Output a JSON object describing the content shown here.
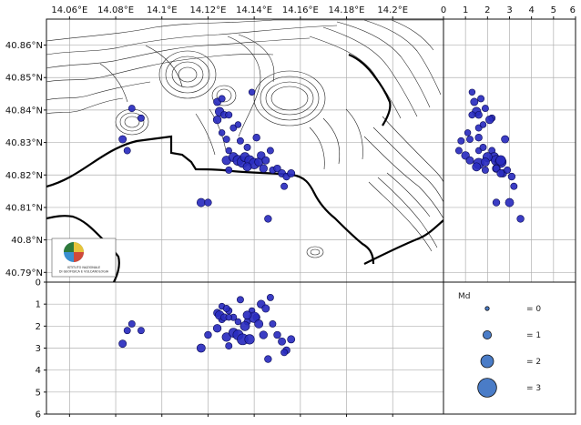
{
  "chart_data": [
    {
      "type": "scatter",
      "panel": "map",
      "x_ticks": [
        "14.06°E",
        "14.08°E",
        "14.1°E",
        "14.12°E",
        "14.14°E",
        "14.16°E",
        "14.18°E",
        "14.2°E"
      ],
      "y_ticks": [
        "40.79°N",
        "40.8°N",
        "40.81°N",
        "40.82°N",
        "40.83°N",
        "40.84°N",
        "40.85°N",
        "40.86°N"
      ],
      "xlim": [
        14.05,
        14.222
      ],
      "ylim": [
        40.787,
        40.868
      ],
      "grid": true,
      "logo_text": [
        "ISTITUTO NAZIONALE",
        "DI GEOFISICA E VULCANOLOGIA"
      ],
      "points": [
        {
          "lon": 14.087,
          "lat": 40.8405,
          "md": 0.6
        },
        {
          "lon": 14.091,
          "lat": 40.8375,
          "md": 0.6
        },
        {
          "lon": 14.083,
          "lat": 40.831,
          "md": 0.8
        },
        {
          "lon": 14.085,
          "lat": 40.8275,
          "md": 0.6
        },
        {
          "lon": 14.117,
          "lat": 40.8115,
          "md": 1.0
        },
        {
          "lon": 14.12,
          "lat": 40.8115,
          "md": 0.7
        },
        {
          "lon": 14.124,
          "lat": 40.8425,
          "md": 0.8
        },
        {
          "lon": 14.126,
          "lat": 40.8435,
          "md": 0.6
        },
        {
          "lon": 14.125,
          "lat": 40.8395,
          "md": 1.1
        },
        {
          "lon": 14.127,
          "lat": 40.8385,
          "md": 0.7
        },
        {
          "lon": 14.124,
          "lat": 40.837,
          "md": 0.9
        },
        {
          "lon": 14.129,
          "lat": 40.8385,
          "md": 0.6
        },
        {
          "lon": 14.131,
          "lat": 40.8345,
          "md": 0.6
        },
        {
          "lon": 14.133,
          "lat": 40.8355,
          "md": 0.5
        },
        {
          "lon": 14.126,
          "lat": 40.833,
          "md": 0.5
        },
        {
          "lon": 14.128,
          "lat": 40.831,
          "md": 0.6
        },
        {
          "lon": 14.134,
          "lat": 40.8305,
          "md": 0.6
        },
        {
          "lon": 14.129,
          "lat": 40.8275,
          "md": 0.5
        },
        {
          "lon": 14.137,
          "lat": 40.8285,
          "md": 0.6
        },
        {
          "lon": 14.139,
          "lat": 40.8455,
          "md": 0.5
        },
        {
          "lon": 14.141,
          "lat": 40.8315,
          "md": 0.7
        },
        {
          "lon": 14.128,
          "lat": 40.8245,
          "md": 1.1
        },
        {
          "lon": 14.131,
          "lat": 40.8255,
          "md": 1.2
        },
        {
          "lon": 14.133,
          "lat": 40.8245,
          "md": 1.4
        },
        {
          "lon": 14.135,
          "lat": 40.824,
          "md": 1.6
        },
        {
          "lon": 14.136,
          "lat": 40.8255,
          "md": 1.2
        },
        {
          "lon": 14.138,
          "lat": 40.8245,
          "md": 1.3
        },
        {
          "lon": 14.14,
          "lat": 40.8235,
          "md": 1.5
        },
        {
          "lon": 14.137,
          "lat": 40.8225,
          "md": 1.0
        },
        {
          "lon": 14.142,
          "lat": 40.824,
          "md": 1.0
        },
        {
          "lon": 14.143,
          "lat": 40.826,
          "md": 0.9
        },
        {
          "lon": 14.145,
          "lat": 40.8245,
          "md": 0.8
        },
        {
          "lon": 14.144,
          "lat": 40.822,
          "md": 0.9
        },
        {
          "lon": 14.147,
          "lat": 40.8275,
          "md": 0.6
        },
        {
          "lon": 14.148,
          "lat": 40.8215,
          "md": 0.6
        },
        {
          "lon": 14.15,
          "lat": 40.822,
          "md": 0.7
        },
        {
          "lon": 14.152,
          "lat": 40.8205,
          "md": 0.8
        },
        {
          "lon": 14.154,
          "lat": 40.8195,
          "md": 0.7
        },
        {
          "lon": 14.156,
          "lat": 40.8205,
          "md": 0.8
        },
        {
          "lon": 14.153,
          "lat": 40.8165,
          "md": 0.6
        },
        {
          "lon": 14.129,
          "lat": 40.8215,
          "md": 0.6
        },
        {
          "lon": 14.146,
          "lat": 40.8065,
          "md": 0.7
        }
      ]
    },
    {
      "type": "scatter",
      "panel": "lat-depth",
      "x_ticks": [
        "0",
        "1",
        "2",
        "3",
        "4",
        "5",
        "6"
      ],
      "xlim": [
        0,
        6
      ],
      "ylim": [
        40.787,
        40.868
      ],
      "grid": true
    },
    {
      "type": "scatter",
      "panel": "lon-depth",
      "y_ticks": [
        "0",
        "1",
        "2",
        "3",
        "4",
        "5",
        "6"
      ],
      "xlim": [
        14.05,
        14.222
      ],
      "ylim": [
        0,
        6
      ],
      "grid": true
    }
  ],
  "depths": [
    1.9,
    2.2,
    2.8,
    2.2,
    3.0,
    2.4,
    1.4,
    1.7,
    1.5,
    1.6,
    2.1,
    1.3,
    1.6,
    1.8,
    1.1,
    1.2,
    0.8,
    1.6,
    1.8,
    1.3,
    1.6,
    2.5,
    2.3,
    2.4,
    2.6,
    2.0,
    2.6,
    1.6,
    1.5,
    1.9,
    1.0,
    1.2,
    2.4,
    0.7,
    1.9,
    2.4,
    2.7,
    3.1,
    2.6,
    3.2,
    2.9,
    3.5
  ],
  "legend": {
    "title": "Md",
    "labels": [
      "= 0",
      "= 1",
      "= 2",
      "= 3"
    ],
    "magnitudes": [
      0,
      1,
      2,
      3
    ]
  },
  "colors": {
    "event_fill": "#2a2dbf",
    "event_edge": "#0a0a55",
    "legend_fill": "#4a7cc7"
  }
}
